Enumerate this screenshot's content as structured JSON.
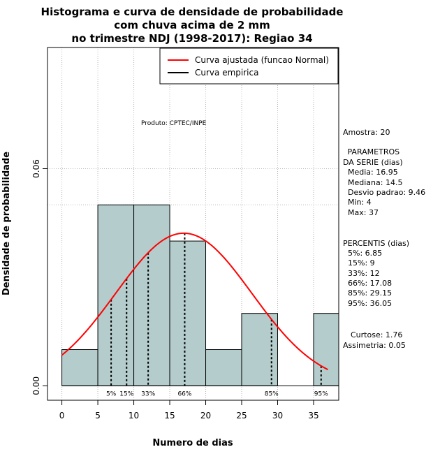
{
  "chart_data": {
    "type": "bar",
    "title": [
      "Histograma e curva de densidade de probabilidade",
      "com chuva acima de 2 mm",
      "no trimestre NDJ (1998-2017): Regiao 34"
    ],
    "xlabel": "Numero de dias",
    "ylabel": "Densidade de probabilidade",
    "xlim": [
      -2,
      38.5
    ],
    "ylim": [
      -0.004,
      0.0935
    ],
    "x_ticks": [
      "0",
      "5",
      "10",
      "15",
      "20",
      "25",
      "30",
      "35"
    ],
    "x_tick_values": [
      0,
      5,
      10,
      15,
      20,
      25,
      30,
      35
    ],
    "y_ticks": [
      "0.00",
      "0.06"
    ],
    "y_tick_values": [
      0,
      0.06
    ],
    "grid": true,
    "grid_y_values": [
      0.06,
      0.05
    ],
    "bins": [
      {
        "from": 0,
        "to": 5,
        "density": 0.01
      },
      {
        "from": 5,
        "to": 10,
        "density": 0.05
      },
      {
        "from": 10,
        "to": 15,
        "density": 0.05
      },
      {
        "from": 15,
        "to": 20,
        "density": 0.04
      },
      {
        "from": 20,
        "to": 25,
        "density": 0.01
      },
      {
        "from": 25,
        "to": 30,
        "density": 0.02
      },
      {
        "from": 30,
        "to": 35,
        "density": 0.0
      },
      {
        "from": 35,
        "to": 40,
        "density": 0.02
      }
    ],
    "bar_color": "#b4cccc",
    "fitted_curve": {
      "name": "Curva ajustada (funcao Normal)",
      "mean": 16.95,
      "sd": 9.46,
      "from": 0,
      "to": 37,
      "color": "#ff0000"
    },
    "empirical_curve": {
      "name": "Curva empirica",
      "color": "#000000"
    },
    "legend_position": "top-right",
    "percentiles": [
      {
        "label": "5%",
        "x": 6.85
      },
      {
        "label": "15%",
        "x": 9
      },
      {
        "label": "33%",
        "x": 12
      },
      {
        "label": "66%",
        "x": 17.08
      },
      {
        "label": "85%",
        "x": 29.15
      },
      {
        "label": "95%",
        "x": 36.05
      }
    ],
    "annotation": "Produto: CPTEC/INPE"
  },
  "side_panel": {
    "amostra": "Amostra: 20",
    "parametros_title": [
      " PARAMETROS",
      "DA SERIE (dias)"
    ],
    "parametros": [
      "Media: 16.95",
      "Mediana: 14.5",
      "Desvio padrao: 9.46",
      "Min: 4",
      "Max: 37"
    ],
    "percentis_title": "PERCENTIS (dias)",
    "percentis": [
      "5%: 6.85",
      "15%: 9",
      "33%: 12",
      "66%: 17.08",
      "85%: 29.15",
      "95%: 36.05"
    ],
    "curtose": "Curtose: 1.76",
    "assimetria": "Assimetria: 0.05"
  }
}
